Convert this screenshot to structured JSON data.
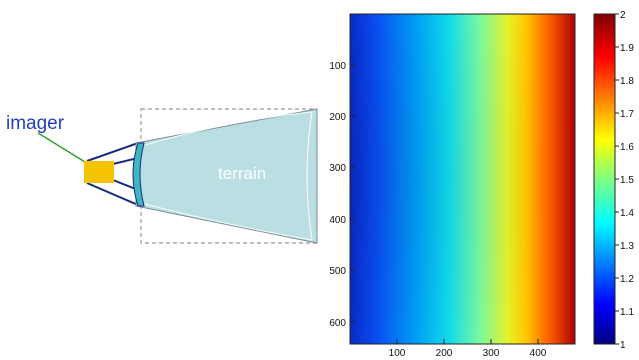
{
  "labels": {
    "imager": "imager",
    "terrain": "terrain"
  },
  "heatmap": {
    "x_ticks": [
      "100",
      "200",
      "300",
      "400"
    ],
    "y_ticks": [
      "100",
      "200",
      "300",
      "400",
      "500",
      "600"
    ],
    "colorbar_ticks": [
      "2",
      "1.9",
      "1.8",
      "1.7",
      "1.6",
      "1.5",
      "1.4",
      "1.3",
      "1.2",
      "1.1",
      "1"
    ],
    "colormap": "jet",
    "value_range": [
      1,
      2
    ]
  },
  "colors": {
    "imager_body": "#f5c400",
    "imager_line": "#2ca02c",
    "frustum_edge": "#1a2a7a",
    "terrain_fill": "#b9dfe3",
    "lens_fill": "#3fb7c0",
    "box_border": "#999999"
  }
}
